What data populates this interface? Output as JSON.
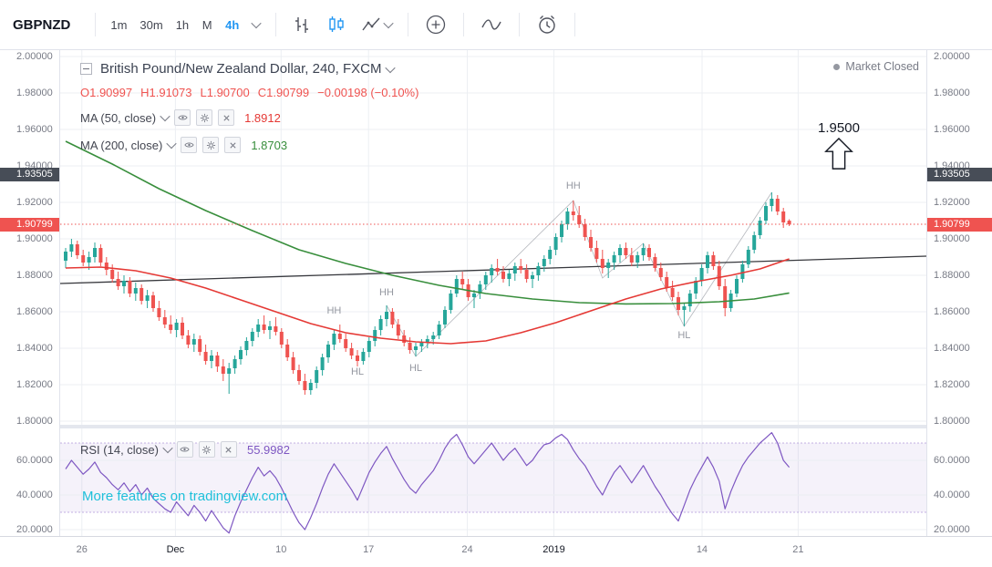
{
  "toolbar": {
    "symbol": "GBPNZD",
    "intervals": [
      "1m",
      "30m",
      "1h",
      "M",
      "4h"
    ],
    "active_interval": "4h"
  },
  "legend": {
    "title": "British Pound/New Zealand Dollar, 240, FXCM",
    "ohlc": {
      "items": [
        "O1.90997",
        "H1.91073",
        "L1.90700",
        "C1.90799",
        "−0.00198 (−0.10%)"
      ]
    },
    "ma50": {
      "label": "MA (50, close)",
      "value": "1.8912"
    },
    "ma200": {
      "label": "MA (200, close)",
      "value": "1.8703"
    },
    "rsi": {
      "label": "RSI (14, close)",
      "value": "55.9982"
    }
  },
  "status": {
    "market_closed": "Market Closed"
  },
  "annotation": {
    "target_price": "1.9500"
  },
  "watermark": "More features on tradingview.com",
  "price_axis": {
    "ticks": [
      "2.00000",
      "1.98000",
      "1.96000",
      "1.94000",
      "1.92000",
      "1.90000",
      "1.88000",
      "1.86000",
      "1.84000",
      "1.82000",
      "1.80000"
    ],
    "badges": [
      {
        "text": "1.93505",
        "p": 1.93505,
        "type": "level"
      },
      {
        "text": "1.90799",
        "p": 1.90799,
        "type": "last"
      }
    ]
  },
  "rsi_axis": {
    "ticks": [
      "60.0000",
      "40.0000",
      "20.0000"
    ]
  },
  "time_axis": {
    "labels": [
      {
        "text": "26",
        "f": 0.025
      },
      {
        "text": "Dec",
        "f": 0.133,
        "strong": true
      },
      {
        "text": "10",
        "f": 0.255
      },
      {
        "text": "17",
        "f": 0.356
      },
      {
        "text": "24",
        "f": 0.47
      },
      {
        "text": "2019",
        "f": 0.57,
        "strong": true
      },
      {
        "text": "14",
        "f": 0.741
      },
      {
        "text": "21",
        "f": 0.852
      }
    ]
  },
  "colors": {
    "up": "#26a69a",
    "down": "#ef5350",
    "ma50": "#e53935",
    "ma200": "#388e3c",
    "rsi": "#7e57c2",
    "rsi_band": "rgba(126,87,194,0.08)",
    "rsi_band_border": "rgba(126,87,194,0.45)",
    "grid": "#eceff3",
    "accent": "#2196f3",
    "axis_text": "#787b86",
    "badge_level": "#474d57",
    "badge_last": "#ef5350",
    "trendline": "#37383d",
    "zigzag": "#9598a1",
    "watermark": "#1fc0da"
  },
  "chart_data": {
    "type": "candlestick",
    "symbol": "GBPNZD",
    "interval": "240",
    "exchange": "FXCM",
    "price_range": [
      1.8,
      2.0
    ],
    "last_price": 1.90799,
    "ohlc_display": {
      "open": 1.90997,
      "high": 1.91073,
      "low": 1.907,
      "close": 1.90799,
      "change": -0.00198,
      "change_pct": -0.1
    },
    "ma50_value": 1.8912,
    "ma200_value": 1.8703,
    "candles": [
      [
        1.888,
        1.895,
        1.884,
        1.893
      ],
      [
        1.893,
        1.9,
        1.89,
        1.897
      ],
      [
        1.897,
        1.899,
        1.889,
        1.891
      ],
      [
        1.891,
        1.894,
        1.885,
        1.887
      ],
      [
        1.887,
        1.893,
        1.883,
        1.89
      ],
      [
        1.89,
        1.898,
        1.887,
        1.895
      ],
      [
        1.895,
        1.897,
        1.885,
        1.887
      ],
      [
        1.887,
        1.89,
        1.88,
        1.883
      ],
      [
        1.883,
        1.886,
        1.876,
        1.878
      ],
      [
        1.878,
        1.882,
        1.872,
        1.874
      ],
      [
        1.874,
        1.88,
        1.87,
        1.877
      ],
      [
        1.877,
        1.879,
        1.868,
        1.87
      ],
      [
        1.87,
        1.876,
        1.866,
        1.873
      ],
      [
        1.873,
        1.875,
        1.864,
        1.866
      ],
      [
        1.866,
        1.872,
        1.862,
        1.869
      ],
      [
        1.869,
        1.871,
        1.86,
        1.862
      ],
      [
        1.862,
        1.866,
        1.855,
        1.857
      ],
      [
        1.857,
        1.861,
        1.851,
        1.853
      ],
      [
        1.853,
        1.858,
        1.848,
        1.85
      ],
      [
        1.85,
        1.856,
        1.846,
        1.854
      ],
      [
        1.854,
        1.857,
        1.845,
        1.847
      ],
      [
        1.847,
        1.85,
        1.84,
        1.842
      ],
      [
        1.842,
        1.848,
        1.838,
        1.845
      ],
      [
        1.845,
        1.847,
        1.836,
        1.838
      ],
      [
        1.838,
        1.842,
        1.831,
        1.833
      ],
      [
        1.833,
        1.839,
        1.829,
        1.836
      ],
      [
        1.836,
        1.838,
        1.827,
        1.83
      ],
      [
        1.83,
        1.834,
        1.822,
        1.826
      ],
      [
        1.826,
        1.832,
        1.815,
        1.829
      ],
      [
        1.829,
        1.836,
        1.826,
        1.834
      ],
      [
        1.834,
        1.841,
        1.831,
        1.839
      ],
      [
        1.839,
        1.846,
        1.836,
        1.844
      ],
      [
        1.844,
        1.851,
        1.841,
        1.849
      ],
      [
        1.849,
        1.856,
        1.846,
        1.853
      ],
      [
        1.853,
        1.858,
        1.848,
        1.85
      ],
      [
        1.85,
        1.855,
        1.845,
        1.852
      ],
      [
        1.852,
        1.857,
        1.847,
        1.849
      ],
      [
        1.849,
        1.851,
        1.84,
        1.842
      ],
      [
        1.842,
        1.845,
        1.833,
        1.835
      ],
      [
        1.835,
        1.838,
        1.826,
        1.828
      ],
      [
        1.828,
        1.831,
        1.82,
        1.822
      ],
      [
        1.822,
        1.826,
        1.8145,
        1.817
      ],
      [
        1.817,
        1.823,
        1.8145,
        1.821
      ],
      [
        1.821,
        1.83,
        1.818,
        1.828
      ],
      [
        1.828,
        1.837,
        1.825,
        1.835
      ],
      [
        1.835,
        1.844,
        1.832,
        1.842
      ],
      [
        1.842,
        1.85,
        1.839,
        1.848
      ],
      [
        1.848,
        1.853,
        1.843,
        1.845
      ],
      [
        1.845,
        1.848,
        1.838,
        1.84
      ],
      [
        1.84,
        1.843,
        1.834,
        1.836
      ],
      [
        1.836,
        1.839,
        1.83,
        1.833
      ],
      [
        1.833,
        1.84,
        1.831,
        1.838
      ],
      [
        1.838,
        1.846,
        1.835,
        1.844
      ],
      [
        1.844,
        1.852,
        1.841,
        1.85
      ],
      [
        1.85,
        1.858,
        1.847,
        1.856
      ],
      [
        1.856,
        1.8635,
        1.852,
        1.86
      ],
      [
        1.86,
        1.862,
        1.851,
        1.853
      ],
      [
        1.853,
        1.856,
        1.845,
        1.847
      ],
      [
        1.847,
        1.85,
        1.841,
        1.843
      ],
      [
        1.843,
        1.846,
        1.837,
        1.839
      ],
      [
        1.839,
        1.843,
        1.8355,
        1.841
      ],
      [
        1.841,
        1.845,
        1.838,
        1.843
      ],
      [
        1.843,
        1.847,
        1.84,
        1.845
      ],
      [
        1.845,
        1.849,
        1.842,
        1.847
      ],
      [
        1.847,
        1.855,
        1.845,
        1.853
      ],
      [
        1.853,
        1.863,
        1.851,
        1.861
      ],
      [
        1.861,
        1.872,
        1.859,
        1.87
      ],
      [
        1.87,
        1.88,
        1.868,
        1.878
      ],
      [
        1.878,
        1.882,
        1.872,
        1.875
      ],
      [
        1.875,
        1.878,
        1.866,
        1.868
      ],
      [
        1.868,
        1.872,
        1.862,
        1.87
      ],
      [
        1.87,
        1.877,
        1.867,
        1.875
      ],
      [
        1.875,
        1.882,
        1.872,
        1.88
      ],
      [
        1.88,
        1.886,
        1.876,
        1.884
      ],
      [
        1.884,
        1.889,
        1.88,
        1.882
      ],
      [
        1.882,
        1.885,
        1.876,
        1.878
      ],
      [
        1.878,
        1.883,
        1.874,
        1.881
      ],
      [
        1.881,
        1.887,
        1.877,
        1.885
      ],
      [
        1.885,
        1.889,
        1.881,
        1.883
      ],
      [
        1.883,
        1.886,
        1.876,
        1.878
      ],
      [
        1.878,
        1.882,
        1.873,
        1.88
      ],
      [
        1.88,
        1.887,
        1.877,
        1.885
      ],
      [
        1.885,
        1.891,
        1.882,
        1.889
      ],
      [
        1.889,
        1.896,
        1.886,
        1.894
      ],
      [
        1.894,
        1.903,
        1.891,
        1.901
      ],
      [
        1.901,
        1.91,
        1.898,
        1.908
      ],
      [
        1.908,
        1.917,
        1.905,
        1.915
      ],
      [
        1.915,
        1.921,
        1.91,
        1.913
      ],
      [
        1.913,
        1.918,
        1.906,
        1.908
      ],
      [
        1.908,
        1.911,
        1.899,
        1.901
      ],
      [
        1.901,
        1.905,
        1.893,
        1.895
      ],
      [
        1.895,
        1.899,
        1.887,
        1.889
      ],
      [
        1.889,
        1.894,
        1.881,
        1.884
      ],
      [
        1.884,
        1.889,
        1.8785,
        1.887
      ],
      [
        1.887,
        1.893,
        1.883,
        1.891
      ],
      [
        1.891,
        1.897,
        1.887,
        1.895
      ],
      [
        1.895,
        1.898,
        1.889,
        1.891
      ],
      [
        1.891,
        1.895,
        1.885,
        1.887
      ],
      [
        1.887,
        1.893,
        1.884,
        1.891
      ],
      [
        1.891,
        1.8975,
        1.888,
        1.895
      ],
      [
        1.895,
        1.897,
        1.888,
        1.89
      ],
      [
        1.89,
        1.892,
        1.882,
        1.884
      ],
      [
        1.884,
        1.887,
        1.877,
        1.879
      ],
      [
        1.879,
        1.882,
        1.871,
        1.873
      ],
      [
        1.873,
        1.877,
        1.866,
        1.868
      ],
      [
        1.868,
        1.871,
        1.858,
        1.861
      ],
      [
        1.861,
        1.865,
        1.852,
        1.863
      ],
      [
        1.863,
        1.872,
        1.86,
        1.87
      ],
      [
        1.87,
        1.879,
        1.867,
        1.877
      ],
      [
        1.877,
        1.886,
        1.874,
        1.884
      ],
      [
        1.884,
        1.893,
        1.881,
        1.891
      ],
      [
        1.891,
        1.893,
        1.883,
        1.885
      ],
      [
        1.885,
        1.888,
        1.872,
        1.874
      ],
      [
        1.874,
        1.878,
        1.8575,
        1.862
      ],
      [
        1.862,
        1.872,
        1.86,
        1.87
      ],
      [
        1.87,
        1.88,
        1.868,
        1.878
      ],
      [
        1.878,
        1.888,
        1.876,
        1.886
      ],
      [
        1.886,
        1.896,
        1.884,
        1.894
      ],
      [
        1.894,
        1.904,
        1.892,
        1.902
      ],
      [
        1.902,
        1.912,
        1.9,
        1.91
      ],
      [
        1.91,
        1.92,
        1.908,
        1.918
      ],
      [
        1.918,
        1.9255,
        1.915,
        1.922
      ],
      [
        1.922,
        1.924,
        1.913,
        1.915
      ],
      [
        1.915,
        1.917,
        1.906,
        1.909
      ],
      [
        1.90997,
        1.91073,
        1.907,
        1.90799
      ]
    ],
    "ma200": [
      [
        0,
        1.9535
      ],
      [
        8,
        1.941
      ],
      [
        16,
        1.9275
      ],
      [
        24,
        1.9155
      ],
      [
        32,
        1.9045
      ],
      [
        40,
        1.894
      ],
      [
        48,
        1.8865
      ],
      [
        56,
        1.88
      ],
      [
        64,
        1.8745
      ],
      [
        72,
        1.87
      ],
      [
        80,
        1.867
      ],
      [
        88,
        1.865
      ],
      [
        96,
        1.8643
      ],
      [
        104,
        1.8645
      ],
      [
        112,
        1.8655
      ],
      [
        118,
        1.867
      ],
      [
        124,
        1.8703
      ]
    ],
    "ma50": [
      [
        0,
        1.884
      ],
      [
        6,
        1.8845
      ],
      [
        12,
        1.8825
      ],
      [
        18,
        1.8785
      ],
      [
        24,
        1.873
      ],
      [
        30,
        1.8665
      ],
      [
        36,
        1.86
      ],
      [
        42,
        1.8535
      ],
      [
        48,
        1.8485
      ],
      [
        54,
        1.8455
      ],
      [
        60,
        1.8435
      ],
      [
        66,
        1.8425
      ],
      [
        72,
        1.844
      ],
      [
        78,
        1.8485
      ],
      [
        84,
        1.854
      ],
      [
        90,
        1.8605
      ],
      [
        96,
        1.867
      ],
      [
        102,
        1.8725
      ],
      [
        108,
        1.8765
      ],
      [
        114,
        1.88
      ],
      [
        119,
        1.8835
      ],
      [
        124,
        1.889
      ]
    ],
    "trendline": {
      "p1": 1.8755,
      "p2": 1.8905
    },
    "zigzag": [
      [
        55,
        1.8635
      ],
      [
        60,
        1.8355
      ],
      [
        87,
        1.921
      ],
      [
        92,
        1.8785
      ],
      [
        99,
        1.8975
      ],
      [
        106,
        1.852
      ],
      [
        121,
        1.9255
      ]
    ],
    "swing_labels": [
      {
        "text": "HH",
        "i": 46,
        "p": 1.859
      },
      {
        "text": "HL",
        "i": 50,
        "p": 1.8255
      },
      {
        "text": "HH",
        "i": 55,
        "p": 1.869
      },
      {
        "text": "HL",
        "i": 60,
        "p": 1.8275
      },
      {
        "text": "HH",
        "i": 87,
        "p": 1.9275
      },
      {
        "text": "HL",
        "i": 106,
        "p": 1.8455
      }
    ],
    "rsi": {
      "period": 14,
      "value": 55.9982,
      "band": [
        30,
        70
      ],
      "values": [
        55,
        60,
        56,
        52,
        55,
        59,
        53,
        50,
        46,
        43,
        47,
        42,
        46,
        40,
        44,
        38,
        35,
        32,
        30,
        36,
        32,
        28,
        34,
        30,
        25,
        31,
        26,
        21,
        18,
        28,
        36,
        43,
        50,
        56,
        51,
        54,
        50,
        44,
        37,
        30,
        24,
        20,
        27,
        35,
        44,
        52,
        58,
        53,
        48,
        43,
        37,
        45,
        53,
        59,
        64,
        68,
        61,
        55,
        49,
        44,
        41,
        46,
        50,
        54,
        60,
        67,
        72,
        75,
        69,
        62,
        58,
        62,
        66,
        70,
        65,
        60,
        64,
        67,
        62,
        57,
        60,
        65,
        69,
        70,
        73,
        75,
        72,
        66,
        61,
        57,
        51,
        45,
        40,
        47,
        53,
        57,
        52,
        47,
        52,
        57,
        51,
        45,
        40,
        34,
        29,
        25,
        34,
        43,
        50,
        56,
        62,
        56,
        48,
        32,
        42,
        50,
        57,
        62,
        66,
        70,
        73,
        76,
        70,
        60,
        55.9982
      ]
    },
    "target_annotation": {
      "price": 1.95
    }
  }
}
